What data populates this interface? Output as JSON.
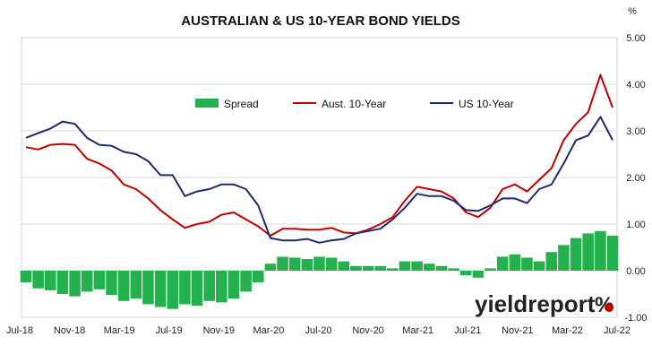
{
  "chart_data": {
    "type": "line",
    "title": "AUSTRALIAN & US 10-YEAR BOND YIELDS",
    "y_unit_label": "%",
    "xlabel": "",
    "ylabel": "",
    "ylim": [
      -1.0,
      5.0
    ],
    "y_ticks": [
      {
        "value": 5.0,
        "label": "5.00"
      },
      {
        "value": 4.0,
        "label": "4.00"
      },
      {
        "value": 3.0,
        "label": "3.00"
      },
      {
        "value": 2.0,
        "label": "2.00"
      },
      {
        "value": 1.0,
        "label": "1.00"
      },
      {
        "value": 0.0,
        "label": "0.00"
      },
      {
        "value": -1.0,
        "label": "-1.00"
      }
    ],
    "x_range": [
      "2018-07",
      "2022-07"
    ],
    "x_ticks": [
      "Jul-18",
      "Nov-18",
      "Mar-19",
      "Jul-19",
      "Nov-19",
      "Mar-20",
      "Jul-20",
      "Nov-20",
      "Mar-21",
      "Jul-21",
      "Nov-21",
      "Mar-22",
      "Jul-22"
    ],
    "grid": "horizontal",
    "legend_position": "upper-center",
    "colors": {
      "Spread": "#22b14c",
      "Aust. 10-Year": "#c00000",
      "US 10-Year": "#1f2a6b",
      "grid": "#d9d9d9",
      "logo_accent": "#c00000"
    },
    "series": [
      {
        "name": "Spread",
        "type": "column",
        "points": [
          [
            "2018-07",
            -0.25
          ],
          [
            "2018-08",
            -0.38
          ],
          [
            "2018-09",
            -0.42
          ],
          [
            "2018-10",
            -0.5
          ],
          [
            "2018-11",
            -0.55
          ],
          [
            "2018-12",
            -0.45
          ],
          [
            "2019-01",
            -0.4
          ],
          [
            "2019-02",
            -0.52
          ],
          [
            "2019-03",
            -0.65
          ],
          [
            "2019-04",
            -0.6
          ],
          [
            "2019-05",
            -0.72
          ],
          [
            "2019-06",
            -0.78
          ],
          [
            "2019-07",
            -0.82
          ],
          [
            "2019-08",
            -0.72
          ],
          [
            "2019-09",
            -0.75
          ],
          [
            "2019-10",
            -0.65
          ],
          [
            "2019-11",
            -0.68
          ],
          [
            "2019-12",
            -0.6
          ],
          [
            "2020-01",
            -0.45
          ],
          [
            "2020-02",
            -0.25
          ],
          [
            "2020-03",
            0.15
          ],
          [
            "2020-04",
            0.3
          ],
          [
            "2020-05",
            0.28
          ],
          [
            "2020-06",
            0.25
          ],
          [
            "2020-07",
            0.3
          ],
          [
            "2020-08",
            0.28
          ],
          [
            "2020-09",
            0.2
          ],
          [
            "2020-10",
            0.1
          ],
          [
            "2020-11",
            0.1
          ],
          [
            "2020-12",
            0.1
          ],
          [
            "2021-01",
            0.05
          ],
          [
            "2021-02",
            0.2
          ],
          [
            "2021-03",
            0.2
          ],
          [
            "2021-04",
            0.15
          ],
          [
            "2021-05",
            0.1
          ],
          [
            "2021-06",
            0.05
          ],
          [
            "2021-07",
            -0.1
          ],
          [
            "2021-08",
            -0.15
          ],
          [
            "2021-09",
            0.05
          ],
          [
            "2021-10",
            0.3
          ],
          [
            "2021-11",
            0.35
          ],
          [
            "2021-12",
            0.28
          ],
          [
            "2022-01",
            0.2
          ],
          [
            "2022-02",
            0.4
          ],
          [
            "2022-03",
            0.55
          ],
          [
            "2022-04",
            0.7
          ],
          [
            "2022-05",
            0.8
          ],
          [
            "2022-06",
            0.85
          ],
          [
            "2022-07",
            0.75
          ]
        ]
      },
      {
        "name": "Aust. 10-Year",
        "type": "line",
        "points": [
          [
            "2018-07",
            2.65
          ],
          [
            "2018-08",
            2.6
          ],
          [
            "2018-09",
            2.7
          ],
          [
            "2018-10",
            2.72
          ],
          [
            "2018-11",
            2.7
          ],
          [
            "2018-12",
            2.4
          ],
          [
            "2019-01",
            2.3
          ],
          [
            "2019-02",
            2.15
          ],
          [
            "2019-03",
            1.85
          ],
          [
            "2019-04",
            1.75
          ],
          [
            "2019-05",
            1.55
          ],
          [
            "2019-06",
            1.3
          ],
          [
            "2019-07",
            1.1
          ],
          [
            "2019-08",
            0.92
          ],
          [
            "2019-09",
            1.0
          ],
          [
            "2019-10",
            1.05
          ],
          [
            "2019-11",
            1.2
          ],
          [
            "2019-12",
            1.25
          ],
          [
            "2020-01",
            1.1
          ],
          [
            "2020-02",
            0.95
          ],
          [
            "2020-03",
            0.75
          ],
          [
            "2020-04",
            0.9
          ],
          [
            "2020-05",
            0.9
          ],
          [
            "2020-06",
            0.88
          ],
          [
            "2020-07",
            0.88
          ],
          [
            "2020-08",
            0.92
          ],
          [
            "2020-09",
            0.82
          ],
          [
            "2020-10",
            0.8
          ],
          [
            "2020-11",
            0.88
          ],
          [
            "2020-12",
            1.0
          ],
          [
            "2021-01",
            1.15
          ],
          [
            "2021-02",
            1.5
          ],
          [
            "2021-03",
            1.8
          ],
          [
            "2021-04",
            1.75
          ],
          [
            "2021-05",
            1.7
          ],
          [
            "2021-06",
            1.55
          ],
          [
            "2021-07",
            1.25
          ],
          [
            "2021-08",
            1.15
          ],
          [
            "2021-09",
            1.35
          ],
          [
            "2021-10",
            1.75
          ],
          [
            "2021-11",
            1.85
          ],
          [
            "2021-12",
            1.7
          ],
          [
            "2022-01",
            1.95
          ],
          [
            "2022-02",
            2.2
          ],
          [
            "2022-03",
            2.8
          ],
          [
            "2022-04",
            3.15
          ],
          [
            "2022-05",
            3.4
          ],
          [
            "2022-06",
            4.2
          ],
          [
            "2022-07",
            3.5
          ]
        ]
      },
      {
        "name": "US 10-Year",
        "type": "line",
        "points": [
          [
            "2018-07",
            2.85
          ],
          [
            "2018-08",
            2.95
          ],
          [
            "2018-09",
            3.05
          ],
          [
            "2018-10",
            3.2
          ],
          [
            "2018-11",
            3.15
          ],
          [
            "2018-12",
            2.85
          ],
          [
            "2019-01",
            2.7
          ],
          [
            "2019-02",
            2.68
          ],
          [
            "2019-03",
            2.55
          ],
          [
            "2019-04",
            2.5
          ],
          [
            "2019-05",
            2.35
          ],
          [
            "2019-06",
            2.05
          ],
          [
            "2019-07",
            2.05
          ],
          [
            "2019-08",
            1.6
          ],
          [
            "2019-09",
            1.7
          ],
          [
            "2019-10",
            1.75
          ],
          [
            "2019-11",
            1.85
          ],
          [
            "2019-12",
            1.85
          ],
          [
            "2020-01",
            1.75
          ],
          [
            "2020-02",
            1.4
          ],
          [
            "2020-03",
            0.7
          ],
          [
            "2020-04",
            0.65
          ],
          [
            "2020-05",
            0.65
          ],
          [
            "2020-06",
            0.68
          ],
          [
            "2020-07",
            0.6
          ],
          [
            "2020-08",
            0.65
          ],
          [
            "2020-09",
            0.68
          ],
          [
            "2020-10",
            0.8
          ],
          [
            "2020-11",
            0.85
          ],
          [
            "2020-12",
            0.9
          ],
          [
            "2021-01",
            1.1
          ],
          [
            "2021-02",
            1.35
          ],
          [
            "2021-03",
            1.65
          ],
          [
            "2021-04",
            1.6
          ],
          [
            "2021-05",
            1.6
          ],
          [
            "2021-06",
            1.5
          ],
          [
            "2021-07",
            1.3
          ],
          [
            "2021-08",
            1.28
          ],
          [
            "2021-09",
            1.4
          ],
          [
            "2021-10",
            1.55
          ],
          [
            "2021-11",
            1.55
          ],
          [
            "2021-12",
            1.45
          ],
          [
            "2022-01",
            1.75
          ],
          [
            "2022-02",
            1.85
          ],
          [
            "2022-03",
            2.3
          ],
          [
            "2022-04",
            2.8
          ],
          [
            "2022-05",
            2.9
          ],
          [
            "2022-06",
            3.3
          ],
          [
            "2022-07",
            2.8
          ]
        ]
      }
    ]
  },
  "logo": {
    "text_a": "yield",
    "text_b": "report",
    "symbol": "%"
  }
}
